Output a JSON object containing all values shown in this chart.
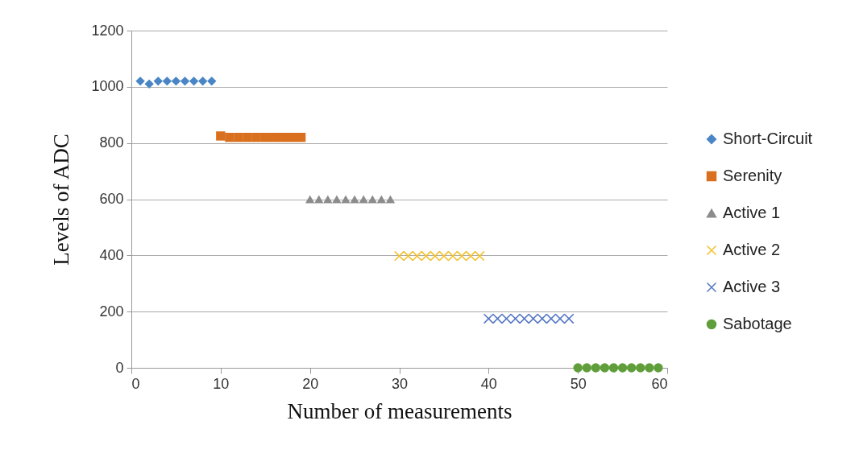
{
  "chart_data": {
    "type": "scatter",
    "xlabel": "Number of measurements",
    "ylabel": "Levels of ADC",
    "xlim": [
      0,
      60
    ],
    "xticks": [
      0,
      10,
      20,
      30,
      40,
      50,
      60
    ],
    "ylim": [
      0,
      1200
    ],
    "yticks": [
      0,
      200,
      400,
      600,
      800,
      1000,
      1200
    ],
    "grid": "y",
    "legend": "right",
    "series": [
      {
        "name": "Short-Circuit",
        "color": "#4a86c5",
        "marker": "diamond",
        "x": [
          1,
          2,
          3,
          4,
          5,
          6,
          7,
          8,
          9
        ],
        "values": [
          1020,
          1010,
          1020,
          1020,
          1020,
          1020,
          1020,
          1020,
          1020
        ]
      },
      {
        "name": "Serenity",
        "color": "#d9701f",
        "marker": "square",
        "x": [
          10,
          11,
          12,
          13,
          14,
          15,
          16,
          17,
          18,
          19
        ],
        "values": [
          825,
          820,
          820,
          820,
          820,
          820,
          820,
          820,
          820,
          820
        ]
      },
      {
        "name": "Active 1",
        "color": "#8c8c8c",
        "marker": "triangle",
        "x": [
          20,
          21,
          22,
          23,
          24,
          25,
          26,
          27,
          28,
          29
        ],
        "values": [
          600,
          600,
          600,
          600,
          600,
          600,
          600,
          600,
          600,
          600
        ]
      },
      {
        "name": "Active 2",
        "color": "#f2c12e",
        "marker": "cross",
        "x": [
          30,
          31,
          32,
          33,
          34,
          35,
          36,
          37,
          38,
          39
        ],
        "values": [
          398,
          398,
          398,
          398,
          398,
          398,
          398,
          398,
          398,
          398
        ]
      },
      {
        "name": "Active 3",
        "color": "#5577c4",
        "marker": "cross",
        "x": [
          40,
          41,
          42,
          43,
          44,
          45,
          46,
          47,
          48,
          49
        ],
        "values": [
          175,
          175,
          175,
          175,
          175,
          175,
          175,
          175,
          175,
          175
        ]
      },
      {
        "name": "Sabotage",
        "color": "#5f9e3a",
        "marker": "circle",
        "x": [
          50,
          51,
          52,
          53,
          54,
          55,
          56,
          57,
          58,
          59
        ],
        "values": [
          0,
          0,
          0,
          0,
          0,
          0,
          0,
          0,
          0,
          0
        ]
      }
    ]
  }
}
